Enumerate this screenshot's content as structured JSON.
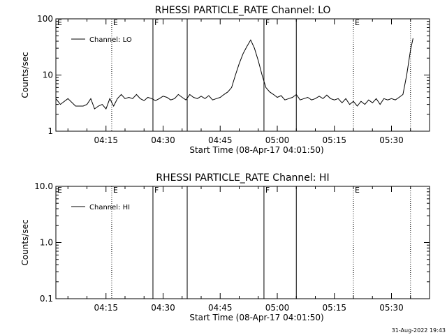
{
  "footer_timestamp": "31-Aug-2022 19:43",
  "chart_data": [
    {
      "type": "line",
      "title": "RHESSI PARTICLE_RATE Channel: LO",
      "xlabel": "Start Time (08-Apr-17 04:01:50)",
      "ylabel": "Counts/sec",
      "yscale": "log",
      "ylim": [
        1,
        100
      ],
      "ytick_labels": [
        "1",
        "10",
        "100"
      ],
      "ytick_values": [
        1,
        10,
        100
      ],
      "xlim": [
        "04:01:50",
        "05:40:00"
      ],
      "xtick_labels": [
        "04:15",
        "04:30",
        "04:45",
        "05:00",
        "05:15",
        "05:30"
      ],
      "xtick_values": [
        "04:15",
        "04:30",
        "04:45",
        "05:00",
        "05:15",
        "05:30"
      ],
      "legend": {
        "position": "top-left",
        "entries": [
          "Channel: LO"
        ]
      },
      "grid": false,
      "markers": [
        {
          "time": "04:16:30",
          "style": "dotted",
          "label": "E"
        },
        {
          "time": "04:27:20",
          "style": "solid",
          "label": "F"
        },
        {
          "time": "04:36:20",
          "style": "solid",
          "label": ""
        },
        {
          "time": "04:56:30",
          "style": "solid",
          "label": "F"
        },
        {
          "time": "05:05:00",
          "style": "solid",
          "label": ""
        },
        {
          "time": "05:20:00",
          "style": "dotted",
          "label": "E"
        },
        {
          "time": "05:35:00",
          "style": "dotted",
          "label": ""
        }
      ],
      "edge_labels": [
        {
          "time": "04:01:50",
          "label": "E"
        }
      ],
      "series": [
        {
          "name": "Channel: LO",
          "x": [
            "04:01:50",
            "04:03:00",
            "04:05:00",
            "04:07:00",
            "04:08:00",
            "04:09:00",
            "04:10:00",
            "04:11:00",
            "04:12:00",
            "04:13:00",
            "04:14:00",
            "04:15:00",
            "04:16:00",
            "04:17:00",
            "04:18:00",
            "04:19:00",
            "04:20:00",
            "04:21:00",
            "04:22:00",
            "04:23:00",
            "04:24:00",
            "04:25:00",
            "04:26:00",
            "04:27:00",
            "04:28:00",
            "04:29:00",
            "04:30:00",
            "04:31:00",
            "04:32:00",
            "04:33:00",
            "04:34:00",
            "04:35:00",
            "04:36:00",
            "04:37:00",
            "04:38:00",
            "04:39:00",
            "04:40:00",
            "04:41:00",
            "04:42:00",
            "04:43:00",
            "04:44:00",
            "04:45:00",
            "04:46:00",
            "04:47:00",
            "04:48:00",
            "04:49:00",
            "04:50:00",
            "04:51:00",
            "04:52:00",
            "04:53:00",
            "04:54:00",
            "04:55:00",
            "04:56:00",
            "04:57:00",
            "04:58:00",
            "04:59:00",
            "05:00:00",
            "05:01:00",
            "05:02:00",
            "05:03:00",
            "05:04:00",
            "05:05:00",
            "05:06:00",
            "05:07:00",
            "05:08:00",
            "05:09:00",
            "05:10:00",
            "05:11:00",
            "05:12:00",
            "05:13:00",
            "05:14:00",
            "05:15:00",
            "05:16:00",
            "05:17:00",
            "05:18:00",
            "05:19:00",
            "05:20:00",
            "05:21:00",
            "05:22:00",
            "05:23:00",
            "05:24:00",
            "05:25:00",
            "05:26:00",
            "05:27:00",
            "05:28:00",
            "05:29:00",
            "05:30:00",
            "05:31:00",
            "05:32:00",
            "05:33:00",
            "05:34:00",
            "05:35:00",
            "05:35:40"
          ],
          "y": [
            3.8,
            3.0,
            3.8,
            2.8,
            2.8,
            2.8,
            3.0,
            3.8,
            2.5,
            2.8,
            3.0,
            2.5,
            3.8,
            2.8,
            3.8,
            4.5,
            3.8,
            4.0,
            3.8,
            4.5,
            3.8,
            3.5,
            4.0,
            3.8,
            3.5,
            3.8,
            4.2,
            4.0,
            3.6,
            3.8,
            4.5,
            4.0,
            3.6,
            4.5,
            4.0,
            3.8,
            4.2,
            3.8,
            4.3,
            3.6,
            3.8,
            4.0,
            4.5,
            5.0,
            6.0,
            10.0,
            16.0,
            24.0,
            32.0,
            42.0,
            30.0,
            18.0,
            10.0,
            6.0,
            5.0,
            4.5,
            4.0,
            4.3,
            3.6,
            3.8,
            4.0,
            4.5,
            3.6,
            3.8,
            4.0,
            3.6,
            3.8,
            4.2,
            3.8,
            4.4,
            3.8,
            3.6,
            3.8,
            3.2,
            3.8,
            3.0,
            3.4,
            2.8,
            3.4,
            3.0,
            3.6,
            3.2,
            3.8,
            3.0,
            3.8,
            3.6,
            3.8,
            3.6,
            4.0,
            4.5,
            10.0,
            28.0,
            45.0
          ]
        }
      ]
    },
    {
      "type": "line",
      "title": "RHESSI PARTICLE_RATE Channel: HI",
      "xlabel": "Start Time (08-Apr-17 04:01:50)",
      "ylabel": "Counts/sec",
      "yscale": "log",
      "ylim": [
        0.1,
        10.0
      ],
      "ytick_labels": [
        "0.1",
        "1.0",
        "10.0"
      ],
      "ytick_values": [
        0.1,
        1.0,
        10.0
      ],
      "xlim": [
        "04:01:50",
        "05:40:00"
      ],
      "xtick_labels": [
        "04:15",
        "04:30",
        "04:45",
        "05:00",
        "05:15",
        "05:30"
      ],
      "xtick_values": [
        "04:15",
        "04:30",
        "04:45",
        "05:00",
        "05:15",
        "05:30"
      ],
      "legend": {
        "position": "top-left",
        "entries": [
          "Channel: HI"
        ]
      },
      "grid": false,
      "markers": [
        {
          "time": "04:16:30",
          "style": "dotted",
          "label": "E"
        },
        {
          "time": "04:27:20",
          "style": "solid",
          "label": "F"
        },
        {
          "time": "04:36:20",
          "style": "solid",
          "label": ""
        },
        {
          "time": "04:56:30",
          "style": "solid",
          "label": "F"
        },
        {
          "time": "05:05:00",
          "style": "solid",
          "label": ""
        },
        {
          "time": "05:20:00",
          "style": "dotted",
          "label": "E"
        },
        {
          "time": "05:35:00",
          "style": "dotted",
          "label": ""
        }
      ],
      "edge_labels": [
        {
          "time": "04:01:50",
          "label": "E"
        }
      ],
      "series": [
        {
          "name": "Channel: HI",
          "x": [],
          "y": []
        }
      ]
    }
  ]
}
